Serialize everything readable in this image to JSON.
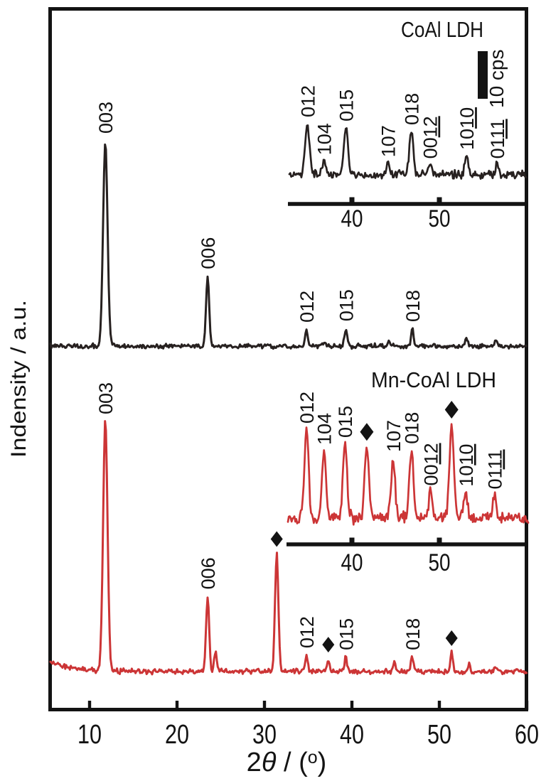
{
  "figure": {
    "y_axis_label": "Indensity / a.u.",
    "x_axis_label": {
      "pre": "2",
      "theta": "θ",
      "mid": " / (",
      "sup": "o",
      "post": ")"
    },
    "colors": {
      "coal_ldh": "#272120",
      "mn_coal_ldh": "#cc3536",
      "axis": "#131313",
      "marker": "#131313"
    }
  },
  "chart_data": {
    "type": "line",
    "title": "",
    "xlabel": "2θ / (°)",
    "ylabel": "Indensity / a.u.",
    "x_ticks": [
      10,
      20,
      30,
      40,
      50,
      60
    ],
    "xlim": [
      5,
      60.3
    ],
    "grid": false,
    "series": [
      {
        "name": "CoAl LDH",
        "color": "#272120",
        "peaks": [
          {
            "two_theta": 11.8,
            "rel_intensity": 1.0,
            "hkl": "003"
          },
          {
            "two_theta": 23.5,
            "rel_intensity": 0.34,
            "hkl": "006"
          },
          {
            "two_theta": 34.8,
            "rel_intensity": 0.08,
            "hkl": "012"
          },
          {
            "two_theta": 36.8,
            "rel_intensity": 0.02
          },
          {
            "two_theta": 39.3,
            "rel_intensity": 0.086,
            "hkl": "015"
          },
          {
            "two_theta": 44.2,
            "rel_intensity": 0.017
          },
          {
            "two_theta": 46.9,
            "rel_intensity": 0.083,
            "hkl": "018"
          },
          {
            "two_theta": 53.1,
            "rel_intensity": 0.035
          },
          {
            "two_theta": 56.5,
            "rel_intensity": 0.028
          }
        ]
      },
      {
        "name": "Mn-CoAl LDH",
        "color": "#cc3536",
        "peaks": [
          {
            "two_theta": 11.8,
            "rel_intensity": 1.0,
            "hkl": "003"
          },
          {
            "two_theta": 23.5,
            "rel_intensity": 0.3,
            "hkl": "006"
          },
          {
            "two_theta": 24.4,
            "rel_intensity": 0.075
          },
          {
            "two_theta": 31.4,
            "rel_intensity": 0.47,
            "marker": "diamond"
          },
          {
            "two_theta": 34.8,
            "rel_intensity": 0.065,
            "hkl": "012"
          },
          {
            "two_theta": 37.3,
            "rel_intensity": 0.048,
            "marker": "diamond"
          },
          {
            "two_theta": 39.3,
            "rel_intensity": 0.057,
            "hkl": "015"
          },
          {
            "two_theta": 44.9,
            "rel_intensity": 0.04
          },
          {
            "two_theta": 46.9,
            "rel_intensity": 0.057,
            "hkl": "018"
          },
          {
            "two_theta": 51.4,
            "rel_intensity": 0.074,
            "marker": "diamond"
          },
          {
            "two_theta": 53.4,
            "rel_intensity": 0.026
          },
          {
            "two_theta": 56.4,
            "rel_intensity": 0.02
          }
        ]
      }
    ],
    "insets": [
      {
        "title": "CoAl LDH",
        "color": "#272120",
        "xlim": [
          33,
          60
        ],
        "x_ticks": [
          40,
          50
        ],
        "scale_bar": "10 cps",
        "peaks": [
          {
            "two_theta": 34.9,
            "rel_intensity": 1.0,
            "hkl": "012"
          },
          {
            "two_theta": 36.8,
            "rel_intensity": 0.27,
            "hkl": "104"
          },
          {
            "two_theta": 39.3,
            "rel_intensity": 0.92,
            "hkl": "015"
          },
          {
            "two_theta": 44.1,
            "rel_intensity": 0.23,
            "hkl": "107"
          },
          {
            "two_theta": 46.8,
            "rel_intensity": 0.85,
            "hkl": "018"
          },
          {
            "two_theta": 48.9,
            "rel_intensity": 0.2,
            "hkl": "0012",
            "underline_last": 2
          },
          {
            "two_theta": 53.1,
            "rel_intensity": 0.37,
            "hkl": "1010",
            "underline_last": 2
          },
          {
            "two_theta": 56.6,
            "rel_intensity": 0.2,
            "hkl": "0111",
            "underline_last": 2
          }
        ]
      },
      {
        "title": "Mn-CoAl LDH",
        "color": "#cc3536",
        "xlim": [
          33,
          60
        ],
        "x_ticks": [
          40,
          50
        ],
        "peaks": [
          {
            "two_theta": 34.8,
            "rel_intensity": 1.0,
            "hkl": "012"
          },
          {
            "two_theta": 36.8,
            "rel_intensity": 0.76,
            "hkl": "104"
          },
          {
            "two_theta": 39.2,
            "rel_intensity": 0.84,
            "hkl": "015"
          },
          {
            "two_theta": 41.7,
            "rel_intensity": 0.81,
            "marker": "diamond"
          },
          {
            "two_theta": 44.7,
            "rel_intensity": 0.68,
            "hkl": "107"
          },
          {
            "two_theta": 46.8,
            "rel_intensity": 0.77,
            "hkl": "018"
          },
          {
            "two_theta": 49.0,
            "rel_intensity": 0.3,
            "hkl": "0012",
            "underline_last": 2
          },
          {
            "two_theta": 51.4,
            "rel_intensity": 1.06,
            "marker": "diamond"
          },
          {
            "two_theta": 53.0,
            "rel_intensity": 0.29,
            "hkl": "1010",
            "underline_last": 2
          },
          {
            "two_theta": 56.3,
            "rel_intensity": 0.26,
            "hkl": "0111",
            "underline_last": 2
          }
        ]
      }
    ]
  }
}
